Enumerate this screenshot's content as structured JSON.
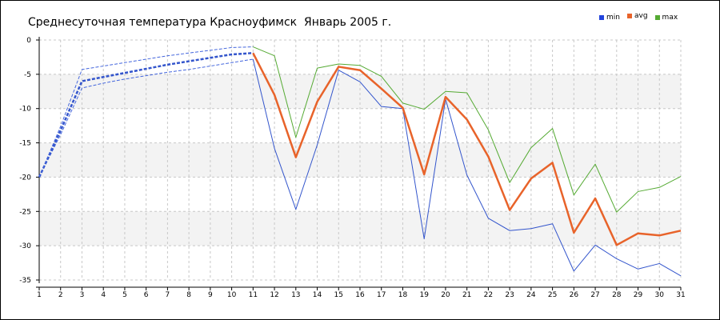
{
  "chart_data": {
    "type": "line",
    "title": "Среднесуточная температура Красноуфимск  Январь 2005 г.",
    "xlabel": "",
    "ylabel": "",
    "x": [
      1,
      2,
      3,
      4,
      5,
      6,
      7,
      8,
      9,
      10,
      11,
      12,
      13,
      14,
      15,
      16,
      17,
      18,
      19,
      20,
      21,
      22,
      23,
      24,
      25,
      26,
      27,
      28,
      29,
      30,
      31
    ],
    "xlim": [
      1,
      31
    ],
    "ylim": [
      -35,
      0
    ],
    "yticks": [
      0,
      -5,
      -10,
      -15,
      -20,
      -25,
      -30,
      -35
    ],
    "grid": true,
    "legend_position": "top-right",
    "interpolated_until_day": 11,
    "series": [
      {
        "name": "min",
        "color": "#3355cc",
        "values": [
          -20,
          -13.8,
          -7.0,
          -6.3,
          -5.7,
          -5.2,
          -4.7,
          -4.3,
          -3.8,
          -3.3,
          -2.8,
          -15.8,
          -24.7,
          -15.3,
          -4.4,
          -6.1,
          -9.7,
          -10.0,
          -29.0,
          -8.6,
          -19.7,
          -26.0,
          -27.8,
          -27.5,
          -26.8,
          -33.7,
          -29.9,
          -31.9,
          -33.4,
          -32.6,
          -34.4
        ]
      },
      {
        "name": "avg",
        "color": "#e8632a",
        "values": [
          -20,
          -13.2,
          -6.0,
          -5.4,
          -4.8,
          -4.2,
          -3.6,
          -3.1,
          -2.6,
          -2.1,
          -1.9,
          -8.0,
          -17.1,
          -9.0,
          -3.9,
          -4.4,
          -7.1,
          -9.9,
          -19.6,
          -8.3,
          -11.6,
          -17.0,
          -24.8,
          -20.2,
          -17.9,
          -28.1,
          -23.1,
          -29.9,
          -28.2,
          -28.5,
          -27.8
        ]
      },
      {
        "name": "max",
        "color": "#55aa33",
        "values": [
          -20,
          -12.6,
          -4.3,
          -3.8,
          -3.3,
          -2.8,
          -2.3,
          -1.9,
          -1.5,
          -1.1,
          -1.0,
          -2.3,
          -14.2,
          -4.1,
          -3.5,
          -3.7,
          -5.3,
          -9.2,
          -10.1,
          -7.5,
          -7.7,
          -13.1,
          -20.8,
          -15.7,
          -12.9,
          -22.6,
          -18.1,
          -25.1,
          -22.1,
          -21.5,
          -19.9
        ]
      }
    ]
  }
}
